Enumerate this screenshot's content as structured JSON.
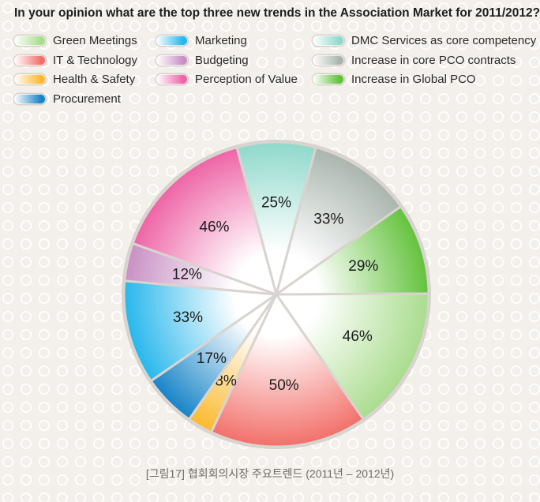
{
  "chart_data": {
    "type": "pie",
    "title": "In your opinion what are the top three new trends in the Association Market for 2011/2012?",
    "slices": [
      {
        "label": "DMC Services as core competency",
        "value": 25,
        "display": "25%",
        "color": "#8fd9cb"
      },
      {
        "label": "Increase in core PCO contracts",
        "value": 33,
        "display": "33%",
        "color": "#aab5ae"
      },
      {
        "label": "Increase in Global PCO",
        "value": 29,
        "display": "29%",
        "color": "#63c23c"
      },
      {
        "label": "Green Meetings",
        "value": 46,
        "display": "46%",
        "color": "#a9dc8d"
      },
      {
        "label": "IT & Technology",
        "value": 50,
        "display": "50%",
        "color": "#f2706a"
      },
      {
        "label": "Health & Safety",
        "value": 8,
        "display": "8%",
        "color": "#fbb92e"
      },
      {
        "label": "Procurement",
        "value": 17,
        "display": "17%",
        "color": "#1784c8"
      },
      {
        "label": "Marketing",
        "value": 33,
        "display": "33%",
        "color": "#27b7ec"
      },
      {
        "label": "Budgeting",
        "value": 12,
        "display": "12%",
        "color": "#c890c4"
      },
      {
        "label": "Perception of Value",
        "value": 46,
        "display": "46%",
        "color": "#ee64a6"
      }
    ],
    "legend_order": [
      "Green Meetings",
      "Marketing",
      "DMC Services as core competency",
      "IT & Technology",
      "Budgeting",
      "Increase in core PCO contracts",
      "Health & Safety",
      "Perception of Value",
      "Increase in Global PCO",
      "Procurement"
    ],
    "legend_position": "top"
  },
  "caption": "[그림17] 협회회의시장 주요트렌드 (2011년 – 2012년)"
}
